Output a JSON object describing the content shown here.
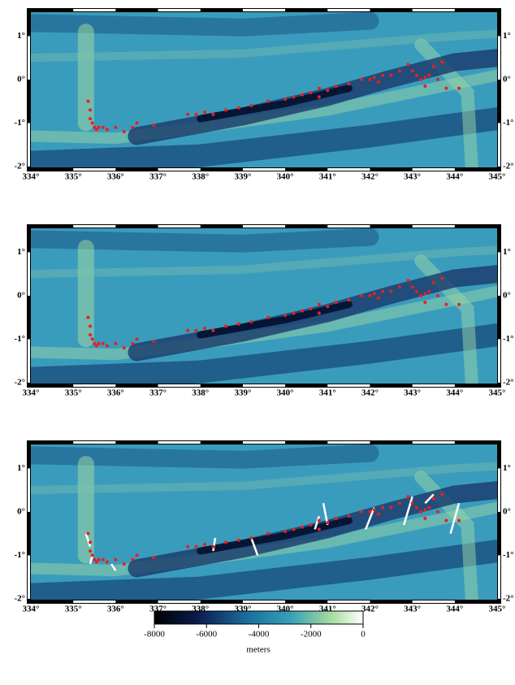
{
  "map": {
    "xlim": [
      334,
      345
    ],
    "ylim": [
      -2.02,
      1.55
    ],
    "xticks": [
      {
        "value": 334,
        "label": "334°"
      },
      {
        "value": 335,
        "label": "335°"
      },
      {
        "value": 336,
        "label": "336°"
      },
      {
        "value": 337,
        "label": "337°"
      },
      {
        "value": 338,
        "label": "338°"
      },
      {
        "value": 339,
        "label": "339°"
      },
      {
        "value": 340,
        "label": "340°"
      },
      {
        "value": 341,
        "label": "341°"
      },
      {
        "value": 342,
        "label": "342°"
      },
      {
        "value": 343,
        "label": "343°"
      },
      {
        "value": 344,
        "label": "344°"
      },
      {
        "value": 345,
        "label": "345°"
      }
    ],
    "yticks": [
      {
        "value": 1,
        "label": "1°"
      },
      {
        "value": 0,
        "label": "0°"
      },
      {
        "value": -1,
        "label": "-1°"
      },
      {
        "value": -2,
        "label": "-2°"
      }
    ],
    "events": [
      [
        335.35,
        -0.5
      ],
      [
        335.4,
        -0.7
      ],
      [
        335.4,
        -0.9
      ],
      [
        335.45,
        -1.0
      ],
      [
        335.5,
        -1.1
      ],
      [
        335.6,
        -1.1
      ],
      [
        335.7,
        -1.1
      ],
      [
        335.55,
        -1.15
      ],
      [
        335.8,
        -1.15
      ],
      [
        336.0,
        -1.1
      ],
      [
        336.2,
        -1.2
      ],
      [
        336.4,
        -1.1
      ],
      [
        336.5,
        -1.0
      ],
      [
        336.9,
        -1.05
      ],
      [
        337.7,
        -0.8
      ],
      [
        337.9,
        -0.8
      ],
      [
        338.1,
        -0.75
      ],
      [
        338.3,
        -0.8
      ],
      [
        338.6,
        -0.7
      ],
      [
        338.9,
        -0.65
      ],
      [
        339.2,
        -0.6
      ],
      [
        339.6,
        -0.5
      ],
      [
        340.0,
        -0.45
      ],
      [
        340.2,
        -0.4
      ],
      [
        340.4,
        -0.35
      ],
      [
        340.6,
        -0.3
      ],
      [
        340.8,
        -0.4
      ],
      [
        340.8,
        -0.2
      ],
      [
        341.0,
        -0.25
      ],
      [
        341.2,
        -0.15
      ],
      [
        341.5,
        -0.1
      ],
      [
        341.8,
        0.0
      ],
      [
        342.0,
        0.0
      ],
      [
        342.1,
        0.05
      ],
      [
        342.2,
        -0.05
      ],
      [
        342.3,
        0.1
      ],
      [
        342.5,
        0.1
      ],
      [
        342.7,
        0.2
      ],
      [
        342.9,
        0.35
      ],
      [
        343.0,
        0.2
      ],
      [
        343.1,
        0.1
      ],
      [
        343.2,
        0.0
      ],
      [
        343.3,
        0.05
      ],
      [
        343.3,
        -0.15
      ],
      [
        343.4,
        0.1
      ],
      [
        343.5,
        0.3
      ],
      [
        343.6,
        0.0
      ],
      [
        343.7,
        0.4
      ],
      [
        343.8,
        -0.2
      ],
      [
        344.1,
        -0.2
      ]
    ],
    "strike_lines": [
      [
        335.3,
        -0.5,
        335.4,
        -0.8
      ],
      [
        335.4,
        -1.2,
        335.45,
        -1.0
      ],
      [
        335.9,
        -1.2,
        336.0,
        -1.35
      ],
      [
        338.3,
        -0.9,
        338.35,
        -0.6
      ],
      [
        339.2,
        -0.6,
        339.35,
        -1.0
      ],
      [
        340.7,
        -0.4,
        340.8,
        -0.1
      ],
      [
        340.9,
        0.2,
        341.0,
        -0.3
      ],
      [
        342.8,
        -0.3,
        343.0,
        0.35
      ],
      [
        343.3,
        0.2,
        343.5,
        0.4
      ],
      [
        343.9,
        -0.5,
        344.1,
        0.2
      ],
      [
        341.9,
        -0.4,
        342.1,
        0.1
      ]
    ]
  },
  "colorbar": {
    "lim": [
      -8000,
      0
    ],
    "ticks": [
      -8000,
      -6000,
      -4000,
      -2000,
      0
    ],
    "label": "meters"
  }
}
